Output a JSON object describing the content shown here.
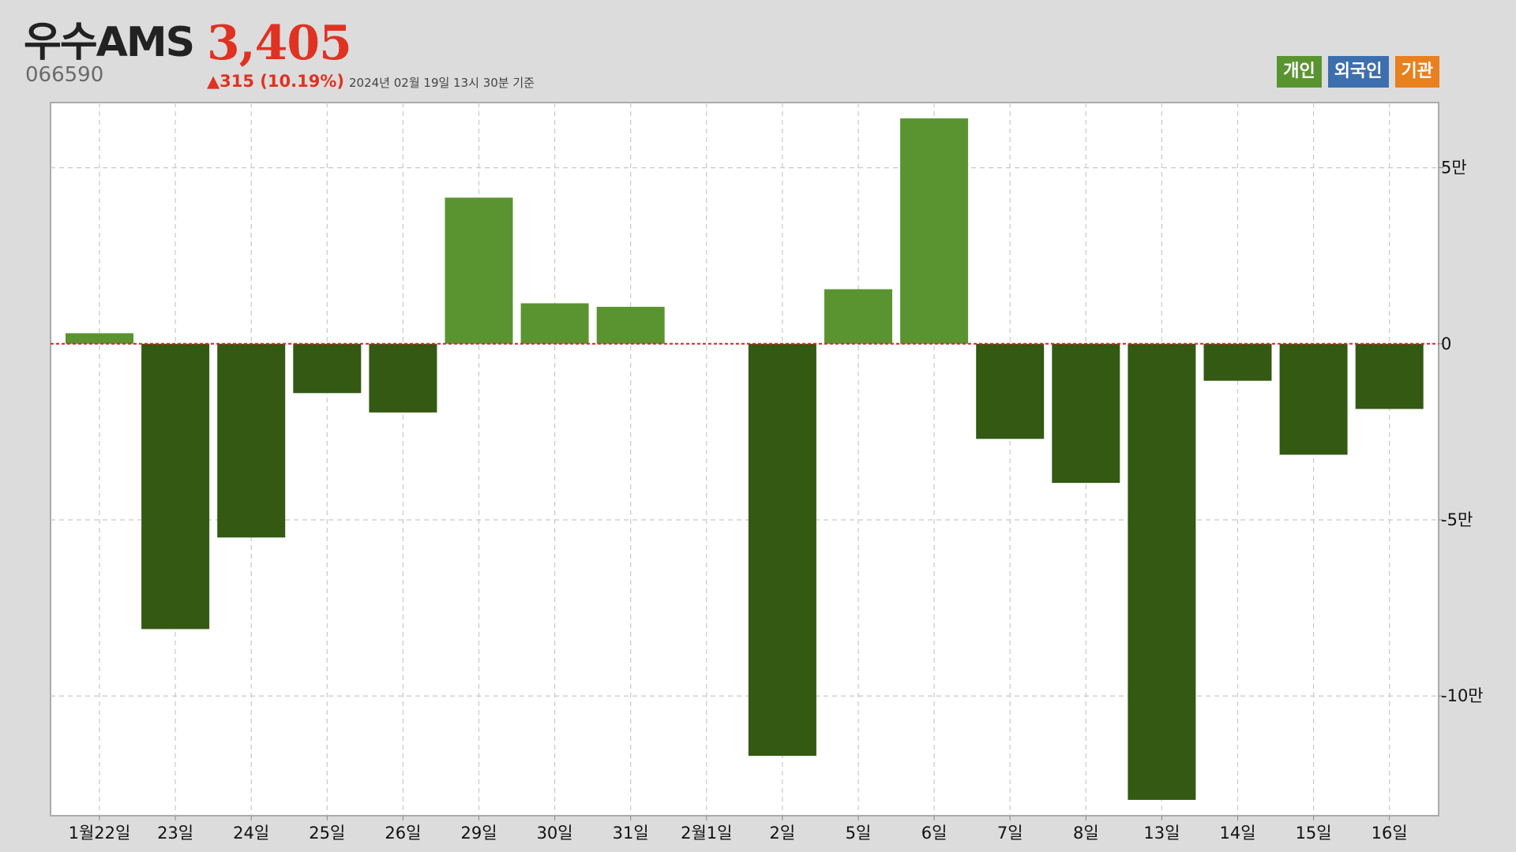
{
  "header": {
    "name": "우수AMS",
    "code": "066590",
    "price": "3,405",
    "change": "▲315 (10.19%)",
    "as_of": "2024년 02월 19일 13시 30분 기준"
  },
  "legend": {
    "individual": "개인",
    "foreign": "외국인",
    "institution": "기관"
  },
  "colors": {
    "positive": "#5a9430",
    "negative": "#335913",
    "zero_line": "#dd2222",
    "background": "#dcdcdc",
    "legend_individual": "#5a9430",
    "legend_foreign": "#3d6fae",
    "legend_institution": "#e8801e"
  },
  "chart_data": {
    "type": "bar",
    "series_name": "개인",
    "categories": [
      "1월22일",
      "23일",
      "24일",
      "25일",
      "26일",
      "29일",
      "30일",
      "31일",
      "2월1일",
      "2일",
      "5일",
      "6일",
      "7일",
      "8일",
      "13일",
      "14일",
      "15일",
      "16일"
    ],
    "values": [
      3000,
      -81000,
      -55000,
      -14000,
      -19500,
      41500,
      11500,
      10500,
      0,
      -117000,
      15500,
      64000,
      -27000,
      -39500,
      -129500,
      -10500,
      -31500,
      -18500
    ],
    "ylim": [
      -134000,
      68500
    ],
    "yticks": [
      50000,
      0,
      -50000,
      -100000
    ],
    "ytick_labels": [
      "5만",
      "0",
      "-5만",
      "-10만"
    ],
    "grid": true,
    "legend_position": "top-right"
  }
}
